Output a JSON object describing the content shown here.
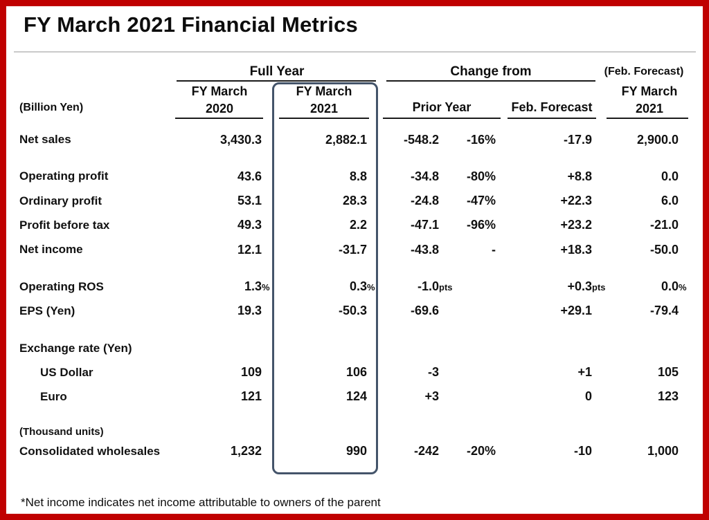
{
  "page": {
    "title": "FY March 2021 Financial Metrics",
    "footnote": "*Net income indicates net income attributable to owners of the parent"
  },
  "colors": {
    "border_red": "#c00000",
    "highlight_box": "#44546a",
    "text": "#111111",
    "title_rule": "#c9c9c9"
  },
  "table": {
    "group_headers": {
      "full_year": "Full Year",
      "change_from": "Change from",
      "feb_forecast_note": "(Feb. Forecast)"
    },
    "column_headers": {
      "unit_label": "(Billion Yen)",
      "fy2020_line1": "FY March",
      "fy2020_line2": "2020",
      "fy2021_line1": "FY March",
      "fy2021_line2": "2021",
      "prior_year": "Prior Year",
      "feb_forecast": "Feb. Forecast",
      "forecast_line1": "FY March",
      "forecast_line2": "2021"
    },
    "rows": [
      {
        "label": "Net sales",
        "v2020": "3,430.3",
        "v2021": "2,882.1",
        "chg": "-548.2",
        "pct": "-16%",
        "fc": "-17.9",
        "fcast": "2,900.0"
      },
      {
        "label": "Operating profit",
        "v2020": "43.6",
        "v2021": "8.8",
        "chg": "-34.8",
        "pct": "-80%",
        "fc": "+8.8",
        "fcast": "0.0"
      },
      {
        "label": "Ordinary profit",
        "v2020": "53.1",
        "v2021": "28.3",
        "chg": "-24.8",
        "pct": "-47%",
        "fc": "+22.3",
        "fcast": "6.0"
      },
      {
        "label": "Profit before tax",
        "v2020": "49.3",
        "v2021": "2.2",
        "chg": "-47.1",
        "pct": "-96%",
        "fc": "+23.2",
        "fcast": "-21.0"
      },
      {
        "label": "Net income",
        "v2020": "12.1",
        "v2021": "-31.7",
        "chg": "-43.8",
        "pct": "-",
        "fc": "+18.3",
        "fcast": "-50.0"
      },
      {
        "label": "Operating ROS",
        "v2020": "1.3",
        "s2020": "%",
        "v2021": "0.3",
        "s2021": "%",
        "chg": "-1.0",
        "schg": "pts",
        "pct": "",
        "fc": "+0.3",
        "sfc": "pts",
        "fcast": "0.0",
        "sfcast": "%"
      },
      {
        "label": "EPS (Yen)",
        "v2020": "19.3",
        "v2021": "-50.3",
        "chg": "-69.6",
        "pct": "",
        "fc": "+29.1",
        "fcast": "-79.4"
      },
      {
        "label": "Exchange rate (Yen)"
      },
      {
        "label": "US Dollar",
        "v2020": "109",
        "v2021": "106",
        "chg": "-3",
        "pct": "",
        "fc": "+1",
        "fcast": "105"
      },
      {
        "label": "Euro",
        "v2020": "121",
        "v2021": "124",
        "chg": "+3",
        "pct": "",
        "fc": "0",
        "fcast": "123"
      },
      {
        "label": "(Thousand units)"
      },
      {
        "label": "Consolidated wholesales",
        "v2020": "1,232",
        "v2021": "990",
        "chg": "-242",
        "pct": "-20%",
        "fc": "-10",
        "fcast": "1,000"
      }
    ]
  }
}
